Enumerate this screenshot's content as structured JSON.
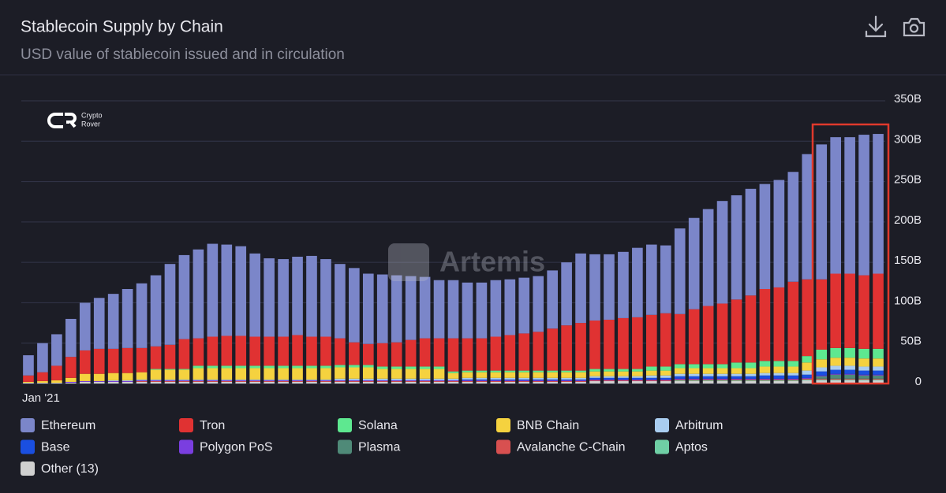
{
  "chart_data": {
    "type": "stacked_bar",
    "title": "Stablecoin Supply by Chain",
    "subtitle": "USD value of stablecoin issued and in circulation",
    "watermarks": [
      "Artemis",
      "Crypto",
      "Rover"
    ],
    "categories": [
      "Jan '21",
      null,
      null,
      null,
      null,
      null,
      null,
      null,
      null,
      null,
      null,
      null,
      null,
      null,
      null,
      null,
      null,
      null,
      null,
      null,
      null,
      null,
      null,
      null,
      null,
      null,
      null,
      null,
      null,
      null,
      null,
      null,
      null,
      null,
      null,
      null,
      null,
      null,
      null,
      null,
      null,
      null,
      null,
      null,
      null,
      null,
      null,
      null,
      null,
      null,
      null,
      null,
      null,
      null,
      null,
      null,
      null,
      null,
      null,
      null,
      null
    ],
    "ylim": [
      0,
      350
    ],
    "yticks": [
      0,
      {
        "value": 50,
        "label": "50B"
      },
      {
        "value": 100,
        "label": "100B"
      },
      {
        "value": 150,
        "label": "150B"
      },
      {
        "value": 200,
        "label": "200B"
      },
      {
        "value": 250,
        "label": "250B"
      },
      {
        "value": 300,
        "label": "300B"
      },
      {
        "value": 350,
        "label": "350B"
      }
    ],
    "grid": true,
    "series": [
      {
        "name": "Ethereum",
        "color": "#7b86c9",
        "values": [
          25,
          36,
          39,
          47,
          59,
          63,
          68,
          73,
          80,
          88,
          100,
          104,
          110,
          115,
          113,
          111,
          103,
          97,
          96,
          97,
          100,
          96,
          92,
          92,
          87,
          85,
          83,
          79,
          76,
          72,
          72,
          69,
          69,
          70,
          69,
          69,
          69,
          72,
          78,
          86,
          82,
          81,
          82,
          86,
          87,
          84,
          106,
          113,
          120,
          127,
          129,
          132,
          130,
          133,
          136,
          155,
          167,
          169,
          169,
          174,
          173
        ]
      },
      {
        "name": "Tron",
        "color": "#e03232",
        "values": [
          8,
          11,
          18,
          26,
          29,
          31,
          30,
          31,
          30,
          28,
          30,
          37,
          34,
          36,
          37,
          37,
          36,
          36,
          36,
          38,
          36,
          36,
          33,
          28,
          26,
          29,
          30,
          33,
          35,
          35,
          41,
          40,
          40,
          42,
          44,
          46,
          48,
          52,
          56,
          59,
          60,
          61,
          63,
          64,
          64,
          66,
          62,
          68,
          72,
          75,
          78,
          83,
          89,
          91,
          98,
          95,
          87,
          92,
          92,
          91,
          93
        ]
      },
      {
        "name": "Solana",
        "color": "#5ee890",
        "values": [
          0,
          0,
          0,
          0,
          0,
          0,
          0,
          0,
          0,
          1,
          1,
          1,
          3,
          3,
          3,
          3,
          3,
          3,
          3,
          3,
          3,
          3,
          3,
          3,
          3,
          3,
          3,
          3,
          3,
          3,
          2,
          2,
          2,
          2,
          2,
          2,
          2,
          2,
          2,
          2,
          3,
          3,
          3,
          3,
          5,
          5,
          5,
          5,
          5,
          5,
          7,
          7,
          7,
          7,
          7,
          8,
          12,
          12,
          12,
          12,
          12
        ]
      },
      {
        "name": "BNB Chain",
        "color": "#f5d23f",
        "values": [
          1,
          2,
          3,
          5,
          9,
          9,
          9,
          9,
          9,
          12,
          12,
          12,
          14,
          14,
          14,
          14,
          14,
          14,
          14,
          14,
          14,
          14,
          14,
          14,
          14,
          12,
          12,
          12,
          12,
          12,
          7,
          7,
          7,
          7,
          7,
          7,
          7,
          7,
          7,
          7,
          6,
          6,
          6,
          6,
          6,
          6,
          7,
          7,
          7,
          7,
          7,
          7,
          8,
          8,
          8,
          10,
          10,
          10,
          10,
          10,
          10
        ]
      },
      {
        "name": "Arbitrum",
        "color": "#a9cdf0",
        "values": [
          0,
          0,
          0,
          0,
          0,
          0,
          1,
          1,
          1,
          1,
          1,
          1,
          1,
          1,
          1,
          1,
          1,
          1,
          1,
          1,
          1,
          1,
          2,
          2,
          2,
          2,
          2,
          2,
          2,
          2,
          2,
          2,
          2,
          2,
          2,
          2,
          2,
          2,
          2,
          2,
          2,
          2,
          2,
          2,
          3,
          3,
          3,
          3,
          3,
          3,
          3,
          3,
          3,
          3,
          3,
          5,
          5,
          5,
          5,
          5,
          5
        ]
      },
      {
        "name": "Base",
        "color": "#1a4fe0",
        "values": [
          0,
          0,
          0,
          0,
          0,
          0,
          0,
          0,
          0,
          0,
          0,
          0,
          0,
          0,
          0,
          0,
          0,
          0,
          0,
          0,
          0,
          0,
          0,
          0,
          0,
          0,
          0,
          0,
          0,
          0,
          0,
          1,
          1,
          1,
          1,
          1,
          1,
          1,
          1,
          1,
          2,
          2,
          2,
          2,
          2,
          2,
          3,
          3,
          3,
          3,
          3,
          3,
          4,
          4,
          4,
          4,
          5,
          5,
          5,
          5,
          5
        ]
      },
      {
        "name": "Polygon PoS",
        "color": "#7a3ee0",
        "values": [
          0,
          0,
          0,
          1,
          1,
          1,
          1,
          1,
          1,
          1,
          1,
          1,
          1,
          1,
          1,
          1,
          1,
          1,
          1,
          1,
          1,
          1,
          1,
          1,
          1,
          1,
          1,
          1,
          1,
          1,
          1,
          1,
          1,
          1,
          1,
          1,
          1,
          1,
          1,
          1,
          1,
          1,
          1,
          1,
          1,
          1,
          1,
          1,
          1,
          1,
          1,
          1,
          1,
          1,
          1,
          1,
          1,
          1,
          1,
          1,
          1
        ]
      },
      {
        "name": "Plasma",
        "color": "#4f8a78",
        "values": [
          0,
          0,
          0,
          0,
          0,
          0,
          0,
          0,
          0,
          0,
          0,
          0,
          0,
          0,
          0,
          0,
          0,
          0,
          0,
          0,
          0,
          0,
          0,
          0,
          0,
          0,
          0,
          0,
          0,
          0,
          0,
          0,
          0,
          0,
          0,
          0,
          0,
          0,
          0,
          0,
          0,
          0,
          0,
          0,
          0,
          0,
          0,
          0,
          0,
          0,
          0,
          0,
          0,
          0,
          0,
          0,
          3,
          5,
          5,
          4,
          4
        ]
      },
      {
        "name": "Avalanche C-Chain",
        "color": "#d85050",
        "values": [
          0,
          0,
          0,
          0,
          0,
          0,
          0,
          0,
          1,
          1,
          1,
          1,
          1,
          1,
          1,
          1,
          1,
          1,
          1,
          1,
          1,
          1,
          1,
          1,
          1,
          1,
          1,
          1,
          1,
          1,
          1,
          1,
          1,
          1,
          1,
          1,
          1,
          1,
          1,
          1,
          1,
          1,
          1,
          1,
          1,
          1,
          1,
          1,
          1,
          1,
          1,
          1,
          1,
          1,
          1,
          1,
          1,
          1,
          1,
          1,
          1
        ]
      },
      {
        "name": "Aptos",
        "color": "#6fcfa5",
        "values": [
          0,
          0,
          0,
          0,
          0,
          0,
          0,
          0,
          0,
          0,
          0,
          0,
          0,
          0,
          0,
          0,
          0,
          0,
          0,
          0,
          0,
          0,
          0,
          0,
          0,
          0,
          0,
          0,
          0,
          0,
          0,
          0,
          0,
          0,
          0,
          0,
          0,
          0,
          0,
          0,
          0,
          0,
          0,
          0,
          0,
          0,
          1,
          1,
          1,
          1,
          1,
          1,
          1,
          1,
          1,
          1,
          1,
          1,
          1,
          1,
          1
        ]
      },
      {
        "name": "Other (13)",
        "color": "#d0d0d0",
        "values": [
          1,
          1,
          1,
          1,
          2,
          2,
          2,
          2,
          2,
          2,
          2,
          2,
          2,
          2,
          2,
          2,
          2,
          2,
          2,
          2,
          2,
          2,
          2,
          2,
          2,
          2,
          2,
          2,
          2,
          2,
          2,
          2,
          2,
          2,
          2,
          2,
          2,
          2,
          2,
          2,
          3,
          3,
          3,
          3,
          3,
          3,
          3,
          3,
          3,
          3,
          3,
          3,
          3,
          3,
          3,
          4,
          4,
          4,
          4,
          4,
          4
        ]
      }
    ]
  }
}
